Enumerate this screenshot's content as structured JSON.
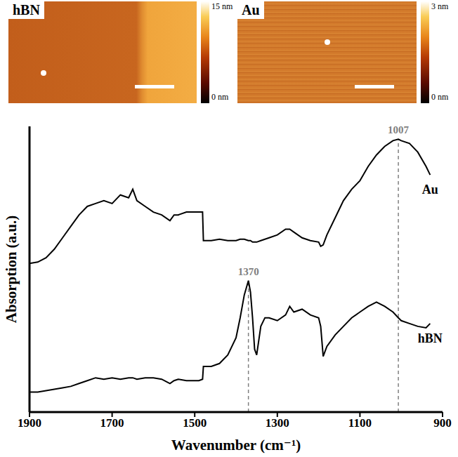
{
  "images": [
    {
      "label": "hBN",
      "colorbar": {
        "range": [
          0,
          15
        ],
        "ticks": [
          {
            "value": 0,
            "label": "0 nm"
          },
          {
            "value": 15,
            "label": "15 nm"
          }
        ]
      }
    },
    {
      "label": "Au",
      "colorbar": {
        "range": [
          0,
          3
        ],
        "ticks": [
          {
            "value": 0,
            "label": "0 nm"
          },
          {
            "value": 3,
            "label": "3 nm"
          }
        ]
      }
    }
  ],
  "chart_data": {
    "type": "line",
    "x_label": "Wavenumber (cm⁻¹)",
    "y_label": "Absorption (a.u.)",
    "x": [
      1900,
      1880,
      1860,
      1840,
      1820,
      1800,
      1780,
      1760,
      1740,
      1720,
      1700,
      1680,
      1660,
      1650,
      1640,
      1620,
      1600,
      1580,
      1560,
      1550,
      1540,
      1520,
      1500,
      1490,
      1481,
      1479,
      1460,
      1440,
      1420,
      1400,
      1390,
      1380,
      1370,
      1365,
      1360,
      1355,
      1350,
      1340,
      1330,
      1320,
      1300,
      1280,
      1270,
      1260,
      1240,
      1220,
      1200,
      1195,
      1189,
      1180,
      1160,
      1140,
      1120,
      1100,
      1080,
      1060,
      1040,
      1020,
      1007,
      1000,
      980,
      960,
      940,
      930
    ],
    "series": [
      {
        "name": "Au",
        "color": "#000000",
        "line_style": "solid",
        "values": [
          52,
          52.5,
          54,
          57,
          61,
          65,
          69,
          72,
          73,
          74,
          73,
          76,
          75,
          78,
          74,
          72,
          70,
          69,
          67,
          69,
          69,
          70,
          70,
          70,
          70,
          60,
          60,
          60.5,
          60,
          60,
          60.5,
          60.5,
          60,
          60,
          59.5,
          59.5,
          59.5,
          60,
          60.5,
          61,
          62,
          64,
          64,
          63,
          61,
          60,
          59.5,
          58,
          58.5,
          62,
          68,
          74,
          78,
          81,
          86,
          90,
          93,
          95,
          95.5,
          95,
          94,
          91,
          86,
          83
        ]
      },
      {
        "name": "hBN",
        "color": "#000000",
        "line_style": "solid",
        "values": [
          7,
          7,
          7.5,
          8,
          8.5,
          9,
          10,
          11,
          12,
          11.5,
          12,
          11.5,
          12,
          12,
          11.5,
          12,
          12,
          11.5,
          10,
          11,
          11.5,
          11,
          11,
          11,
          11.5,
          16,
          16,
          17,
          20,
          26,
          33,
          41,
          46,
          42,
          33,
          22,
          20,
          30,
          33,
          33,
          32,
          34,
          37,
          35,
          36,
          34,
          33,
          30,
          19.5,
          23,
          27,
          30,
          33,
          35,
          37,
          38.5,
          37,
          35,
          33,
          32,
          31,
          30,
          29.5,
          31
        ]
      }
    ],
    "xlim": [
      900,
      1900
    ],
    "xticks": [
      900,
      1100,
      1300,
      1500,
      1700,
      1900
    ],
    "ylim": [
      0,
      100
    ],
    "tick_labels": "x",
    "grid": false,
    "annotations": [
      {
        "x": 1370,
        "text": "1370",
        "series": "hBN"
      },
      {
        "x": 1007,
        "text": "1007",
        "series": "Au"
      }
    ]
  }
}
